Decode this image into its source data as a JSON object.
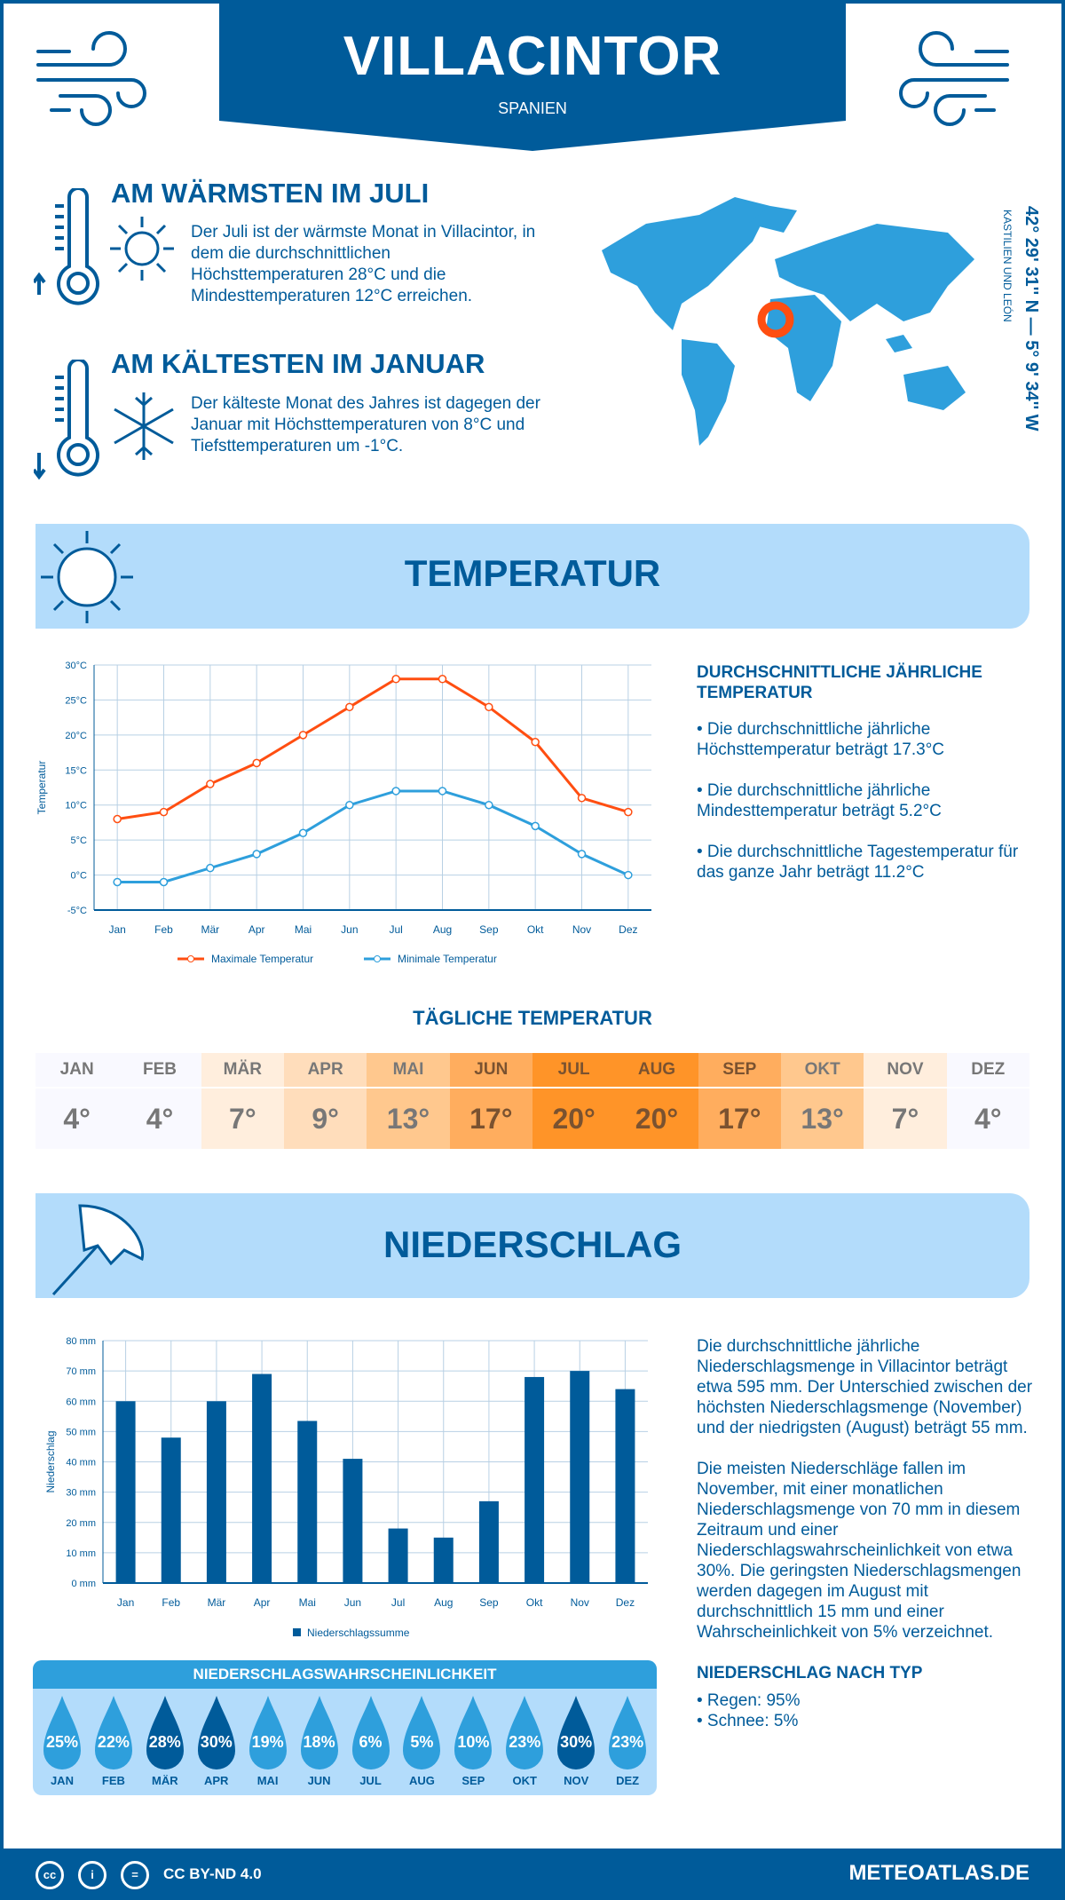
{
  "header": {
    "title": "VILLACINTOR",
    "country": "SPANIEN"
  },
  "coords": {
    "latlon": "42° 29' 31'' N — 5° 9' 34'' W",
    "region": "KASTILIEN UND LEÓN"
  },
  "warmest": {
    "heading": "AM WÄRMSTEN IM JULI",
    "text": "Der Juli ist der wärmste Monat in Villacintor, in dem die durchschnittlichen Höchsttemperaturen 28°C und die Mindesttemperaturen 12°C erreichen."
  },
  "coldest": {
    "heading": "AM KÄLTESTEN IM JANUAR",
    "text": "Der kälteste Monat des Jahres ist dagegen der Januar mit Höchsttemperaturen von 8°C und Tiefsttemperaturen um -1°C."
  },
  "temperature": {
    "title": "TEMPERATUR",
    "summary_heading": "DURCHSCHNITTLICHE JÄHRLICHE TEMPERATUR",
    "bullets": [
      "• Die durchschnittliche jährliche Höchsttemperatur beträgt 17.3°C",
      "• Die durchschnittliche jährliche Mindesttemperatur beträgt 5.2°C",
      "• Die durchschnittliche Tagestemperatur für das ganze Jahr beträgt 11.2°C"
    ]
  },
  "daily": {
    "title": "TÄGLICHE TEMPERATUR",
    "months": [
      "JAN",
      "FEB",
      "MÄR",
      "APR",
      "MAI",
      "JUN",
      "JUL",
      "AUG",
      "SEP",
      "OKT",
      "NOV",
      "DEZ"
    ],
    "values": [
      "4°",
      "4°",
      "7°",
      "9°",
      "13°",
      "17°",
      "20°",
      "20°",
      "17°",
      "13°",
      "7°",
      "4°"
    ],
    "colors": [
      "#f9f9ff",
      "#f9f9ff",
      "#ffeedd",
      "#ffddbb",
      "#ffc88e",
      "#ffad5e",
      "#ff9428",
      "#ff9428",
      "#ffad5e",
      "#ffc88e",
      "#ffeedd",
      "#f9f9ff"
    ]
  },
  "precipitation": {
    "title": "NIEDERSCHLAG",
    "text1": "Die durchschnittliche jährliche Niederschlagsmenge in Villacintor beträgt etwa 595 mm. Der Unterschied zwischen der höchsten Niederschlagsmenge (November) und der niedrigsten (August) beträgt 55 mm.",
    "text2": "Die meisten Niederschläge fallen im November, mit einer monatlichen Niederschlagsmenge von 70 mm in diesem Zeitraum und einer Niederschlagswahrscheinlichkeit von etwa 30%. Die geringsten Niederschlagsmengen werden dagegen im August mit durchschnittlich 15 mm und einer Wahrscheinlichkeit von 5% verzeichnet.",
    "type_heading": "NIEDERSCHLAG NACH TYP",
    "types": [
      "• Regen: 95%",
      "• Schnee: 5%"
    ]
  },
  "probability": {
    "title": "NIEDERSCHLAGSWAHRSCHEINLICHKEIT",
    "months": [
      "JAN",
      "FEB",
      "MÄR",
      "APR",
      "MAI",
      "JUN",
      "JUL",
      "AUG",
      "SEP",
      "OKT",
      "NOV",
      "DEZ"
    ],
    "values": [
      "25%",
      "22%",
      "28%",
      "30%",
      "19%",
      "18%",
      "6%",
      "5%",
      "10%",
      "23%",
      "30%",
      "23%"
    ],
    "color_normal": "#2e9fdc",
    "color_high": "#005b9a"
  },
  "footer": {
    "license": "CC BY-ND 4.0",
    "site": "METEOATLAS.DE"
  },
  "chart_data": [
    {
      "type": "line",
      "categories": [
        "Jan",
        "Feb",
        "Mär",
        "Apr",
        "Mai",
        "Jun",
        "Jul",
        "Aug",
        "Sep",
        "Okt",
        "Nov",
        "Dez"
      ],
      "series": [
        {
          "name": "Maximale Temperatur",
          "color": "#ff4e11",
          "values": [
            8,
            9,
            13,
            16,
            20,
            24,
            28,
            28,
            24,
            19,
            11,
            9
          ]
        },
        {
          "name": "Minimale Temperatur",
          "color": "#2e9fdc",
          "values": [
            -1,
            -1,
            1,
            3,
            6,
            10,
            12,
            12,
            10,
            7,
            3,
            0
          ]
        }
      ],
      "ylabel": "Temperatur",
      "ylim": [
        -5,
        30
      ],
      "yticks": [
        "-5°C",
        "0°C",
        "5°C",
        "10°C",
        "15°C",
        "20°C",
        "25°C",
        "30°C"
      ],
      "grid": true,
      "legend": "bottom"
    },
    {
      "type": "bar",
      "categories": [
        "Jan",
        "Feb",
        "Mär",
        "Apr",
        "Mai",
        "Jun",
        "Jul",
        "Aug",
        "Sep",
        "Okt",
        "Nov",
        "Dez"
      ],
      "series": [
        {
          "name": "Niederschlagssumme",
          "color": "#005b9a",
          "values": [
            60,
            48,
            60,
            69,
            53.5,
            41,
            18,
            15,
            27,
            68,
            70,
            64
          ]
        }
      ],
      "ylabel": "Niederschlag",
      "ylim": [
        0,
        80
      ],
      "yticks": [
        "0 mm",
        "10 mm",
        "20 mm",
        "30 mm",
        "40 mm",
        "50 mm",
        "60 mm",
        "70 mm",
        "80 mm"
      ],
      "grid": true,
      "legend": "bottom"
    }
  ]
}
